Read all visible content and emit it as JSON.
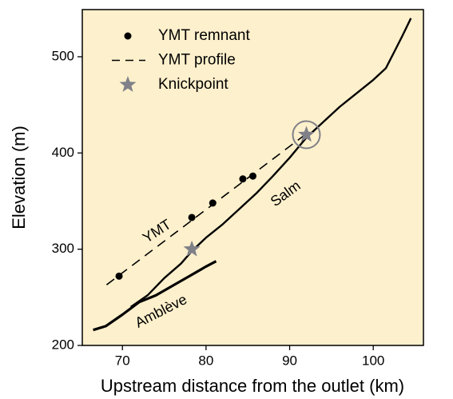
{
  "chart_data": {
    "type": "line",
    "x_label": "Upstream distance from the outlet (km)",
    "y_label": "Elevation (m)",
    "xlim": [
      65.2,
      106
    ],
    "ylim": [
      200,
      549
    ],
    "xticks": [
      70,
      80,
      90,
      100
    ],
    "yticks": [
      200,
      300,
      400,
      500
    ],
    "background": "#fdf0cc",
    "series": [
      {
        "name": "YMT remnant",
        "kind": "points",
        "color": "#000000",
        "x": [
          69.6,
          78.3,
          80.8,
          84.4,
          85.6
        ],
        "values": [
          272,
          333,
          348,
          373,
          376
        ]
      },
      {
        "name": "YMT profile",
        "kind": "dashed",
        "color": "#000000",
        "x": [
          68.1,
          92
        ],
        "values": [
          263,
          420
        ]
      },
      {
        "name": "Knickpoint",
        "kind": "stars",
        "color": "#808088",
        "x": [
          78.3,
          92
        ],
        "values": [
          300,
          419
        ]
      }
    ],
    "profiles": [
      {
        "name": "Salm",
        "color": "#000000",
        "x": [
          71,
          73,
          75,
          77,
          78.3,
          80,
          82,
          84,
          86,
          88,
          90,
          92,
          94,
          96,
          98,
          100,
          101.5,
          102.5,
          103.5,
          104.5
        ],
        "values": [
          240,
          252,
          270,
          285,
          298,
          312,
          326,
          342,
          358,
          376,
          395,
          416,
          432,
          448,
          462,
          476,
          488,
          505,
          522,
          540
        ]
      },
      {
        "name": "Amblève",
        "color": "#000000",
        "x": [
          66.5,
          68,
          70,
          72,
          74,
          76,
          78,
          80,
          81.2
        ],
        "values": [
          216,
          220,
          232,
          245,
          252,
          262,
          272,
          282,
          287.5
        ]
      }
    ],
    "annotations": [
      "YMT"
    ]
  }
}
